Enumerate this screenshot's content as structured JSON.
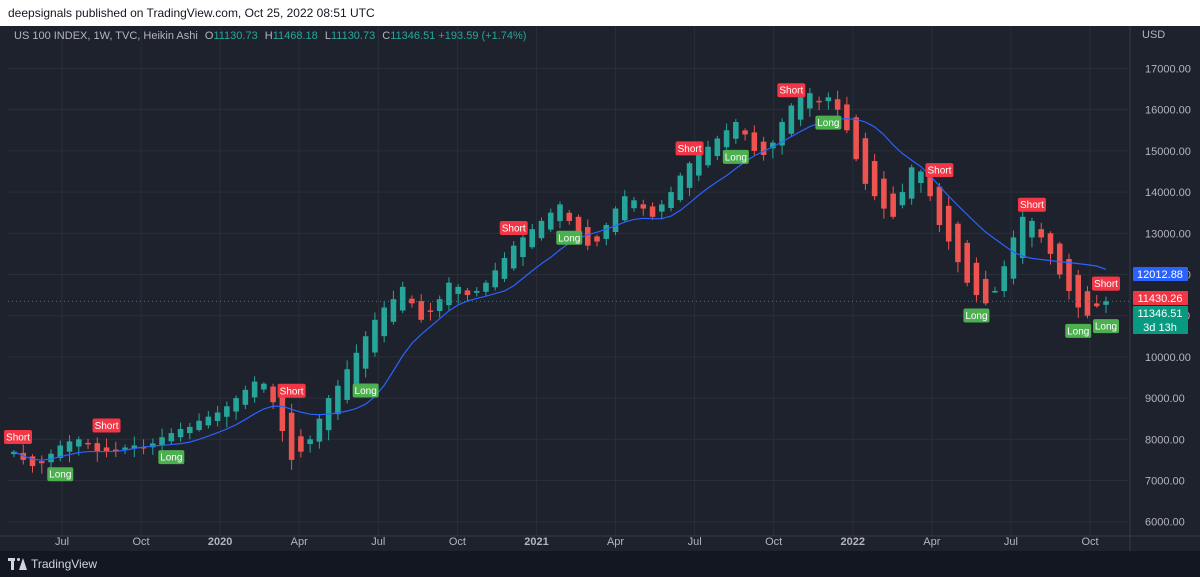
{
  "header": {
    "publish_text": "deepsignals published on TradingView.com, Oct 25, 2022 08:51 UTC"
  },
  "legend": {
    "symbol": "US 100 INDEX, 1W, TVC, Heikin Ashi",
    "o_label": "O",
    "o": "11130.73",
    "h_label": "H",
    "h": "11468.18",
    "l_label": "L",
    "l": "11130.73",
    "c_label": "C",
    "c": "11346.51",
    "change": "+193.59 (+1.74%)"
  },
  "footer": {
    "brand": "TradingView"
  },
  "chart_data": {
    "type": "candlestick",
    "currency_label": "USD",
    "y_ticks": [
      6000,
      7000,
      8000,
      9000,
      10000,
      11000,
      12000,
      13000,
      14000,
      15000,
      16000,
      17000
    ],
    "y_tick_labels": [
      "6000.00",
      "7000.00",
      "8000.00",
      "9000.00",
      "10000.00",
      "11000.00",
      "12000.00",
      "13000.00",
      "14000.00",
      "15000.00",
      "16000.00",
      "17000.00"
    ],
    "ylim": [
      5750,
      17400
    ],
    "x_labels": [
      "Jul",
      "Oct",
      "2020",
      "Apr",
      "Jul",
      "Oct",
      "2021",
      "Apr",
      "Jul",
      "Oct",
      "2022",
      "Apr",
      "Jul",
      "Oct"
    ],
    "x_label_bold": [
      false,
      false,
      true,
      false,
      false,
      false,
      true,
      false,
      false,
      false,
      true,
      false,
      false,
      false
    ],
    "price_tags": [
      {
        "value": 12012.88,
        "text": "12012.88",
        "color": "#2962ff"
      },
      {
        "value": 11430.26,
        "text": "11430.26",
        "color": "#f23645"
      },
      {
        "value": 11346.51,
        "text": "11346.51",
        "color": "#089981"
      }
    ],
    "countdown": "3d 13h",
    "colors": {
      "up": "#26a69a",
      "down": "#ef5350",
      "ma": "#2962ff"
    },
    "close_path": [
      7700,
      7500,
      7350,
      7420,
      7650,
      7850,
      7950,
      8000,
      7900,
      7700,
      7700,
      7750,
      7800,
      7850,
      7800,
      7900,
      8050,
      8150,
      8250,
      8300,
      8450,
      8550,
      8650,
      8800,
      9000,
      9200,
      9400,
      9350,
      8900,
      8200,
      7500,
      7700,
      8000,
      8500,
      9000,
      9300,
      9700,
      10100,
      10500,
      10900,
      11200,
      11400,
      11700,
      11300,
      10900,
      11100,
      11400,
      11800,
      11700,
      11500,
      11600,
      11800,
      12100,
      12400,
      12700,
      12900,
      13100,
      13300,
      13500,
      13700,
      13300,
      12900,
      12700,
      12800,
      13200,
      13600,
      13900,
      13800,
      13600,
      13400,
      13700,
      14000,
      14400,
      14700,
      14900,
      15100,
      15300,
      15500,
      15700,
      15400,
      15000,
      14900,
      15200,
      15700,
      16100,
      16300,
      16400,
      16200,
      16300,
      16000,
      15500,
      14800,
      14200,
      13900,
      13600,
      13400,
      14000,
      14600,
      14500,
      13900,
      13200,
      12800,
      12300,
      11800,
      11500,
      11300,
      11600,
      12200,
      12900,
      13400,
      13300,
      12900,
      12500,
      12000,
      11600,
      11200,
      11000,
      11230,
      11350
    ],
    "signals": [
      {
        "label": "Short",
        "index": 0
      },
      {
        "label": "Long",
        "index": 5
      },
      {
        "label": "Short",
        "index": 10
      },
      {
        "label": "Long",
        "index": 17
      },
      {
        "label": "Short",
        "index": 30
      },
      {
        "label": "Long",
        "index": 38
      },
      {
        "label": "Short",
        "index": 54
      },
      {
        "label": "Long",
        "index": 60
      },
      {
        "label": "Short",
        "index": 73
      },
      {
        "label": "Long",
        "index": 78
      },
      {
        "label": "Short",
        "index": 84
      },
      {
        "label": "Long",
        "index": 88
      },
      {
        "label": "Short",
        "index": 100
      },
      {
        "label": "Long",
        "index": 104
      },
      {
        "label": "Short",
        "index": 110
      },
      {
        "label": "Long",
        "index": 115
      },
      {
        "label": "Short",
        "index": 120
      },
      {
        "label": "Long",
        "index": 131
      },
      {
        "label": "Short",
        "index": 137
      }
    ]
  }
}
